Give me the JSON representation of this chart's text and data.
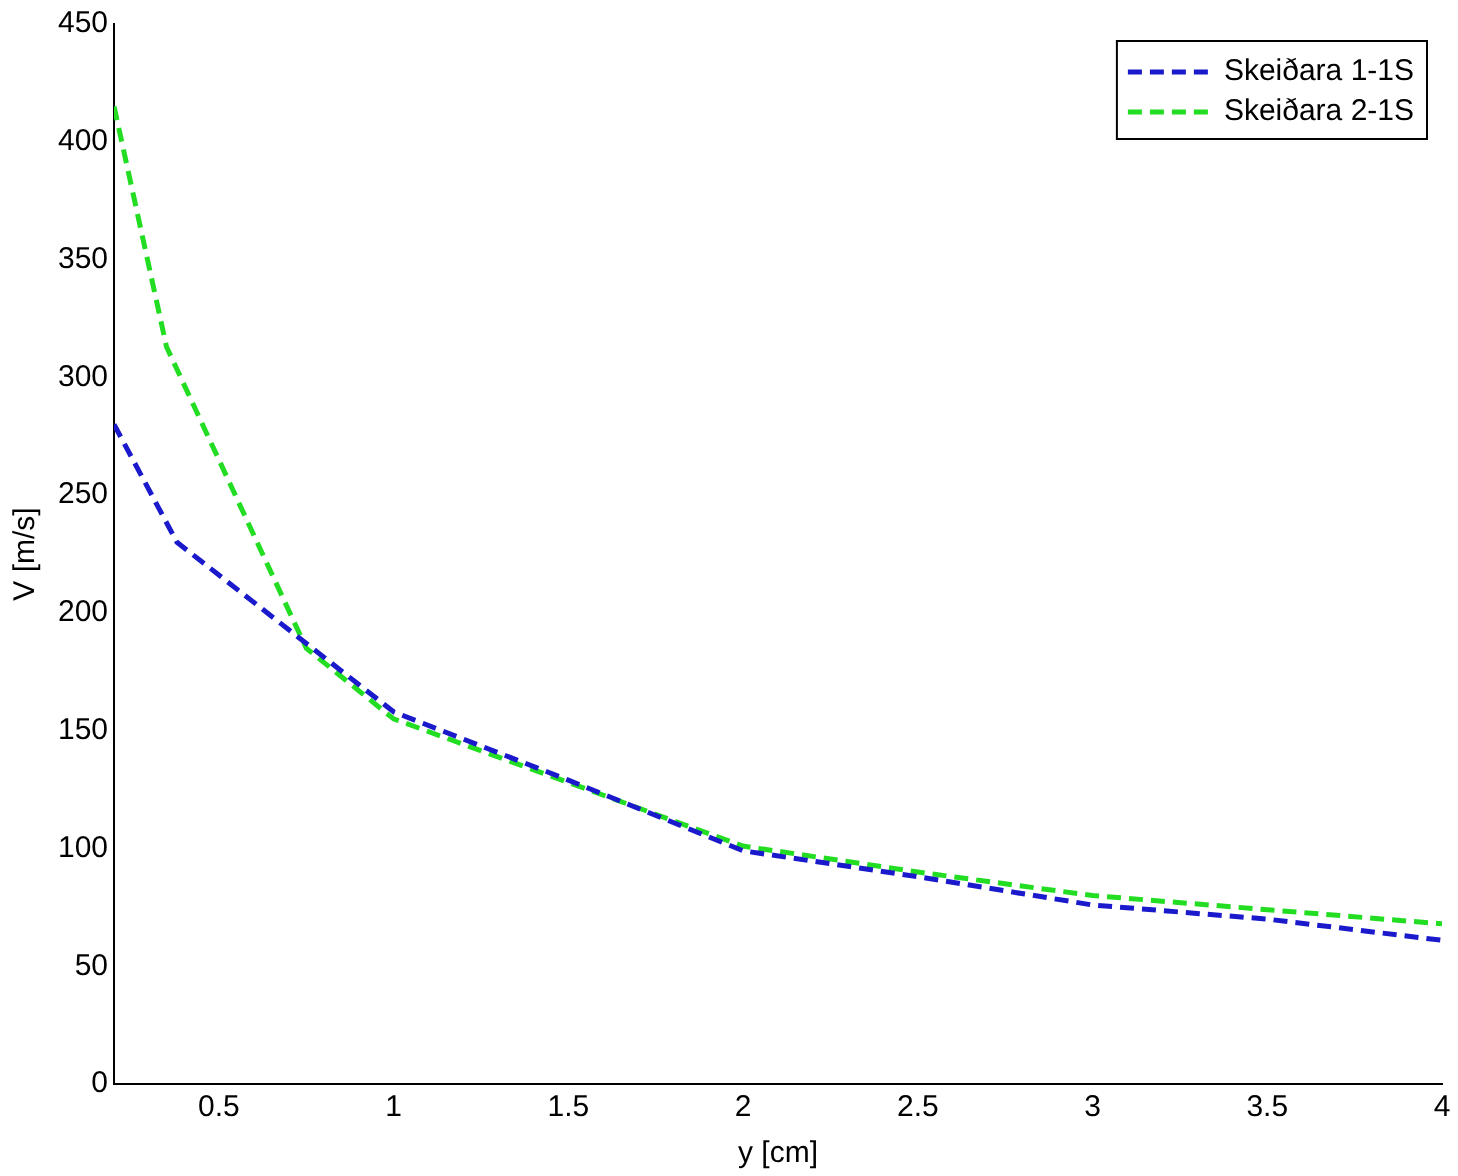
{
  "chart_data": {
    "type": "line",
    "xlabel": "y [cm]",
    "ylabel": "V [m/s]",
    "xlim": [
      0.2,
      4
    ],
    "xticks": [
      0.5,
      1,
      1.5,
      2,
      2.5,
      3,
      3.5,
      4
    ],
    "ylim": [
      0,
      450
    ],
    "yticks": [
      0,
      50,
      100,
      150,
      200,
      250,
      300,
      350,
      400,
      450
    ],
    "grid": false,
    "legend": "top right",
    "line_style": "dashed",
    "marker": "none",
    "series": [
      {
        "name": "Skeiðara 1-1S",
        "color": "#1a1acc",
        "x": [
          0.2,
          0.38,
          1,
          1.5,
          2,
          2.5,
          3,
          3.5,
          4
        ],
        "values": [
          280,
          230,
          158,
          129,
          99,
          88,
          76,
          70,
          61
        ]
      },
      {
        "name": "Skeiðara 2-1S",
        "color": "#22dd22",
        "x": [
          0.2,
          0.35,
          0.75,
          1,
          1.5,
          2,
          2.5,
          3,
          3.5,
          4
        ],
        "values": [
          415,
          313,
          185,
          155,
          128,
          101,
          90,
          80,
          74,
          68
        ]
      }
    ]
  }
}
